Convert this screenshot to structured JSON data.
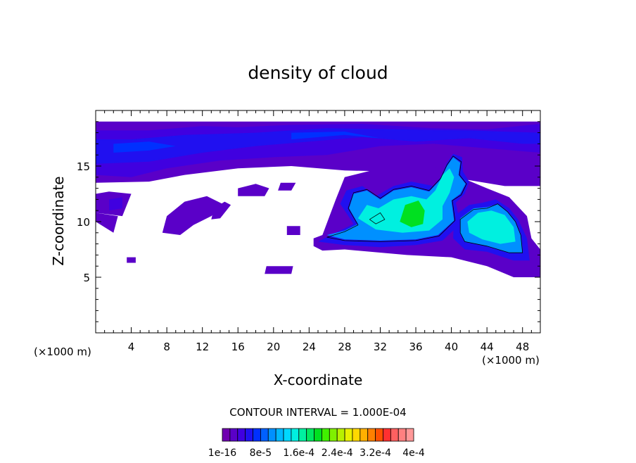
{
  "chart_data": {
    "type": "heatmap",
    "title": "density of cloud",
    "xlabel": "X-coordinate",
    "ylabel": "Z-coordinate",
    "x_unit_label": "(×1000 m)",
    "y_unit_label": "(×1000 m)",
    "xlim": [
      0,
      50
    ],
    "ylim": [
      0,
      20
    ],
    "x_ticks": [
      4,
      8,
      12,
      16,
      20,
      24,
      28,
      32,
      36,
      40,
      44,
      48
    ],
    "y_ticks": [
      5,
      10,
      15
    ],
    "grid": false,
    "contour_interval_text": "CONTOUR INTERVAL = 1.000E-04",
    "colorbar": {
      "min": 1e-16,
      "max": 0.0004,
      "tick_labels": [
        "1e-16",
        "8e-5",
        "1.6e-4",
        "2.4e-4",
        "3.2e-4",
        "4e-4"
      ],
      "tick_values": [
        1e-16,
        8e-05,
        0.00016,
        0.00024,
        0.00032,
        0.0004
      ],
      "colors": [
        "#7000b0",
        "#5a00c8",
        "#4000e0",
        "#2010f0",
        "#0030ff",
        "#0060ff",
        "#0090ff",
        "#00b8ff",
        "#00d8ff",
        "#00f0e0",
        "#00f0a0",
        "#00e860",
        "#00e020",
        "#40f000",
        "#80f000",
        "#b8f000",
        "#e8f000",
        "#ffd800",
        "#ffb000",
        "#ff8000",
        "#ff5000",
        "#ff3030",
        "#ff6060",
        "#ff8080",
        "#ff9898"
      ]
    },
    "regions": [
      {
        "level": 1,
        "points": [
          [
            0,
            13.5
          ],
          [
            6,
            13.6
          ],
          [
            10,
            14.2
          ],
          [
            16,
            14.8
          ],
          [
            22,
            15
          ],
          [
            28,
            14.6
          ],
          [
            34,
            14.5
          ],
          [
            40,
            14
          ],
          [
            46,
            13.2
          ],
          [
            50,
            13.2
          ],
          [
            50,
            19
          ],
          [
            0,
            19
          ]
        ]
      },
      {
        "level": 1,
        "points": [
          [
            0,
            10.8
          ],
          [
            3,
            10.5
          ],
          [
            4,
            12.5
          ],
          [
            1.5,
            12.7
          ],
          [
            0,
            12.5
          ]
        ]
      },
      {
        "level": 1,
        "points": [
          [
            0,
            10
          ],
          [
            2,
            9
          ],
          [
            2.5,
            10.5
          ],
          [
            0,
            10.8
          ]
        ]
      },
      {
        "level": 1,
        "points": [
          [
            7.5,
            9
          ],
          [
            9.5,
            8.8
          ],
          [
            11,
            9.7
          ],
          [
            13,
            10.5
          ],
          [
            14.5,
            11.5
          ],
          [
            12.5,
            12.3
          ],
          [
            10,
            11.8
          ],
          [
            8,
            10.5
          ]
        ]
      },
      {
        "level": 1,
        "points": [
          [
            13,
            10.2
          ],
          [
            14,
            10.3
          ],
          [
            15.2,
            11.5
          ],
          [
            14.5,
            11.8
          ],
          [
            13.3,
            11.2
          ]
        ]
      },
      {
        "level": 1,
        "points": [
          [
            16,
            12.3
          ],
          [
            19,
            12.3
          ],
          [
            19.5,
            13
          ],
          [
            18,
            13.4
          ],
          [
            16,
            13
          ]
        ]
      },
      {
        "level": 1,
        "points": [
          [
            20.5,
            12.8
          ],
          [
            22,
            12.8
          ],
          [
            22.5,
            13.5
          ],
          [
            20.8,
            13.5
          ]
        ]
      },
      {
        "level": 1,
        "points": [
          [
            19,
            5.3
          ],
          [
            22,
            5.3
          ],
          [
            22.2,
            6
          ],
          [
            19.2,
            6
          ]
        ]
      },
      {
        "level": 1,
        "points": [
          [
            3.5,
            6.3
          ],
          [
            4.5,
            6.3
          ],
          [
            4.5,
            6.8
          ],
          [
            3.5,
            6.8
          ]
        ]
      },
      {
        "level": 1,
        "points": [
          [
            21.5,
            8.8
          ],
          [
            23,
            8.8
          ],
          [
            23,
            9.6
          ],
          [
            21.5,
            9.6
          ]
        ]
      },
      {
        "level": 1,
        "points": [
          [
            24.5,
            8.5
          ],
          [
            25.5,
            8.8
          ],
          [
            27,
            12
          ],
          [
            28,
            14
          ],
          [
            33,
            15
          ],
          [
            38,
            15
          ],
          [
            41,
            14
          ],
          [
            44,
            13
          ],
          [
            46.5,
            12.2
          ],
          [
            48.5,
            10.5
          ],
          [
            49,
            8.5
          ],
          [
            50,
            7.5
          ],
          [
            50,
            5
          ],
          [
            47,
            5
          ],
          [
            44,
            6
          ],
          [
            40,
            6.8
          ],
          [
            35,
            7
          ],
          [
            28,
            7.5
          ],
          [
            25.5,
            7.4
          ],
          [
            24.5,
            7.8
          ]
        ]
      },
      {
        "level": 2,
        "points": [
          [
            0,
            14.2
          ],
          [
            4,
            14
          ],
          [
            8,
            14.8
          ],
          [
            14,
            15.5
          ],
          [
            20,
            15.8
          ],
          [
            26,
            16
          ],
          [
            32,
            16.8
          ],
          [
            38,
            17
          ],
          [
            44,
            16.6
          ],
          [
            50,
            16.2
          ],
          [
            50,
            18.8
          ],
          [
            44,
            18.3
          ],
          [
            38,
            18.4
          ],
          [
            30,
            18.8
          ],
          [
            22,
            18.7
          ],
          [
            16,
            18.5
          ],
          [
            12,
            18.6
          ],
          [
            6,
            18.2
          ],
          [
            0,
            18.2
          ]
        ]
      },
      {
        "level": 2,
        "points": [
          [
            1.5,
            11
          ],
          [
            3,
            11.2
          ],
          [
            3,
            12.2
          ],
          [
            1.5,
            12
          ]
        ]
      },
      {
        "level": 3,
        "points": [
          [
            0,
            15.2
          ],
          [
            6,
            15.4
          ],
          [
            12,
            16.2
          ],
          [
            18,
            16.8
          ],
          [
            24,
            17.2
          ],
          [
            30,
            17.6
          ],
          [
            36,
            17.2
          ],
          [
            42,
            17.5
          ],
          [
            48,
            17
          ],
          [
            50,
            17
          ],
          [
            50,
            18
          ],
          [
            42,
            18.2
          ],
          [
            34,
            18.3
          ],
          [
            26,
            18.4
          ],
          [
            18,
            18
          ],
          [
            10,
            17.8
          ],
          [
            4,
            17.4
          ],
          [
            0,
            17.4
          ]
        ]
      },
      {
        "level": 4,
        "points": [
          [
            2,
            16.2
          ],
          [
            6,
            16.4
          ],
          [
            9,
            16.8
          ],
          [
            6,
            17.2
          ],
          [
            2,
            17
          ]
        ]
      },
      {
        "level": 4,
        "points": [
          [
            22,
            17.4
          ],
          [
            28,
            17.8
          ],
          [
            32,
            17.5
          ],
          [
            28,
            18.1
          ],
          [
            22,
            18
          ]
        ]
      },
      {
        "level": 3,
        "points": [
          [
            25,
            8.2
          ],
          [
            27,
            9
          ],
          [
            29,
            9.8
          ],
          [
            27.5,
            11.6
          ],
          [
            28.2,
            12.8
          ],
          [
            30,
            13.2
          ],
          [
            31.5,
            12.3
          ],
          [
            33.5,
            13.2
          ],
          [
            35.5,
            13.6
          ],
          [
            38,
            13.2
          ],
          [
            38.8,
            14
          ],
          [
            39.5,
            15.3
          ],
          [
            40.2,
            16.1
          ],
          [
            41.2,
            15.8
          ],
          [
            41.3,
            14.5
          ],
          [
            42,
            13.6
          ],
          [
            41.5,
            12.5
          ],
          [
            40.5,
            11.7
          ],
          [
            41,
            9.8
          ],
          [
            39,
            8.3
          ],
          [
            36,
            7.9
          ],
          [
            32,
            7.7
          ],
          [
            28,
            7.9
          ]
        ]
      },
      {
        "level": 3,
        "points": [
          [
            40.3,
            10.5
          ],
          [
            42,
            11.5
          ],
          [
            43.5,
            11.7
          ],
          [
            45,
            12
          ],
          [
            46.5,
            11.2
          ],
          [
            47.5,
            10.2
          ],
          [
            48.5,
            8.5
          ],
          [
            48.8,
            6.5
          ],
          [
            47,
            6.5
          ],
          [
            44,
            7.3
          ],
          [
            41.5,
            7.5
          ],
          [
            40.2,
            8.5
          ]
        ]
      },
      {
        "level": 6,
        "points": [
          [
            26,
            8.8
          ],
          [
            28,
            9.2
          ],
          [
            29.5,
            9.8
          ],
          [
            28.5,
            11.2
          ],
          [
            29,
            12.5
          ],
          [
            30.5,
            12.8
          ],
          [
            32,
            12
          ],
          [
            33.5,
            12.8
          ],
          [
            35.5,
            13.1
          ],
          [
            37.5,
            12.7
          ],
          [
            38.8,
            13.8
          ],
          [
            39.5,
            15
          ],
          [
            40.2,
            15.8
          ],
          [
            41,
            15.3
          ],
          [
            40.8,
            14.2
          ],
          [
            41.6,
            13.4
          ],
          [
            41,
            12.5
          ],
          [
            40,
            11.9
          ],
          [
            40.3,
            10.1
          ],
          [
            38.5,
            8.8
          ],
          [
            36,
            8.4
          ],
          [
            32,
            8.3
          ],
          [
            28,
            8.4
          ]
        ]
      },
      {
        "level": 6,
        "points": [
          [
            41,
            10.3
          ],
          [
            42.5,
            11.2
          ],
          [
            44,
            11.3
          ],
          [
            45.2,
            11.6
          ],
          [
            46.3,
            10.9
          ],
          [
            47.2,
            10
          ],
          [
            47.8,
            8.8
          ],
          [
            48,
            7.2
          ],
          [
            46.5,
            7.2
          ],
          [
            44,
            7.8
          ],
          [
            41.5,
            8.2
          ],
          [
            41,
            9
          ]
        ]
      },
      {
        "level": 9,
        "points": [
          [
            29.5,
            10.3
          ],
          [
            30.5,
            11.5
          ],
          [
            31.8,
            11.2
          ],
          [
            33.5,
            12
          ],
          [
            35.5,
            12.3
          ],
          [
            37.2,
            12
          ],
          [
            38.2,
            12.8
          ],
          [
            39,
            14.2
          ],
          [
            39.8,
            14.8
          ],
          [
            40.3,
            14
          ],
          [
            39.8,
            12.6
          ],
          [
            39,
            11.4
          ],
          [
            39,
            10.2
          ],
          [
            37.5,
            9.2
          ],
          [
            34.5,
            9
          ],
          [
            31.5,
            9.3
          ]
        ]
      },
      {
        "level": 9,
        "points": [
          [
            41.8,
            10
          ],
          [
            43,
            10.8
          ],
          [
            44.5,
            11
          ],
          [
            46,
            10.6
          ],
          [
            47,
            9.5
          ],
          [
            47.2,
            8.2
          ],
          [
            45.5,
            8
          ],
          [
            43.5,
            8.4
          ],
          [
            42,
            9
          ]
        ]
      },
      {
        "level": 12,
        "points": [
          [
            34.2,
            10
          ],
          [
            34.8,
            11.5
          ],
          [
            36.3,
            11.9
          ],
          [
            37,
            11
          ],
          [
            36.8,
            9.8
          ],
          [
            35.5,
            9.5
          ]
        ]
      }
    ],
    "contours": [
      {
        "points": [
          [
            26,
            8.6
          ],
          [
            28,
            9.1
          ],
          [
            29.5,
            9.7
          ],
          [
            28.4,
            11.2
          ],
          [
            29,
            12.6
          ],
          [
            30.5,
            12.9
          ],
          [
            32,
            12.1
          ],
          [
            33.5,
            12.9
          ],
          [
            35.5,
            13.2
          ],
          [
            37.5,
            12.8
          ],
          [
            38.8,
            13.9
          ],
          [
            39.5,
            15.1
          ],
          [
            40.2,
            15.9
          ],
          [
            41.1,
            15.4
          ],
          [
            40.9,
            14.2
          ],
          [
            41.7,
            13.4
          ],
          [
            41.1,
            12.4
          ],
          [
            40.1,
            11.9
          ],
          [
            40.4,
            10.1
          ],
          [
            38.6,
            8.7
          ],
          [
            36,
            8.3
          ],
          [
            32,
            8.2
          ],
          [
            28,
            8.3
          ],
          [
            26,
            8.6
          ]
        ]
      },
      {
        "points": [
          [
            30.8,
            10.2
          ],
          [
            32,
            10.8
          ],
          [
            32.5,
            10.2
          ],
          [
            31.5,
            9.8
          ],
          [
            30.8,
            10.2
          ]
        ]
      },
      {
        "points": [
          [
            41,
            10.2
          ],
          [
            42.5,
            11.1
          ],
          [
            44,
            11.2
          ],
          [
            45.2,
            11.6
          ],
          [
            46.3,
            10.9
          ],
          [
            47.2,
            10
          ],
          [
            47.8,
            8.8
          ],
          [
            48,
            7.2
          ],
          [
            46.5,
            7.2
          ],
          [
            44,
            7.8
          ],
          [
            41.5,
            8.2
          ],
          [
            41,
            9
          ],
          [
            41,
            10.2
          ]
        ]
      }
    ]
  }
}
